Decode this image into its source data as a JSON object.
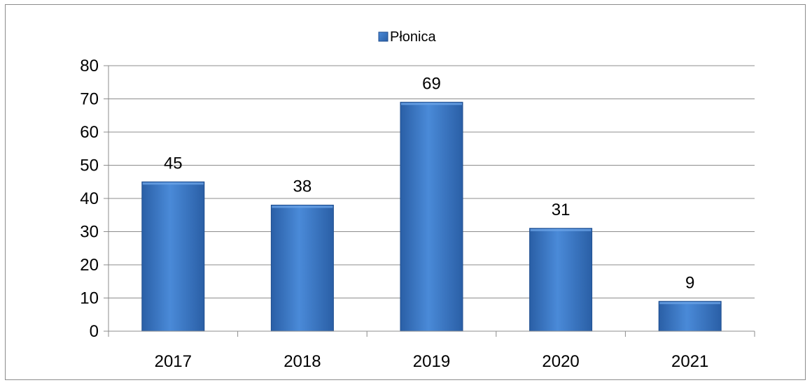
{
  "chart_data": {
    "type": "bar",
    "categories": [
      "2017",
      "2018",
      "2019",
      "2020",
      "2021"
    ],
    "series": [
      {
        "name": "Płonica",
        "values": [
          45,
          38,
          69,
          31,
          9
        ],
        "color": "#3a78c8"
      }
    ],
    "title": "",
    "xlabel": "",
    "ylabel": "",
    "ylim": [
      0,
      80
    ],
    "y_ticks": [
      "0",
      "10",
      "20",
      "30",
      "40",
      "50",
      "60",
      "70",
      "80"
    ],
    "data_labels": [
      "45",
      "38",
      "69",
      "31",
      "9"
    ],
    "grid": true,
    "legend_position": "top-center",
    "colors": {
      "bar_fill": "#3a78c8",
      "bar_edge": "#1f4e8f",
      "gridline": "#8c8c8c",
      "axis": "#8c8c8c"
    }
  }
}
